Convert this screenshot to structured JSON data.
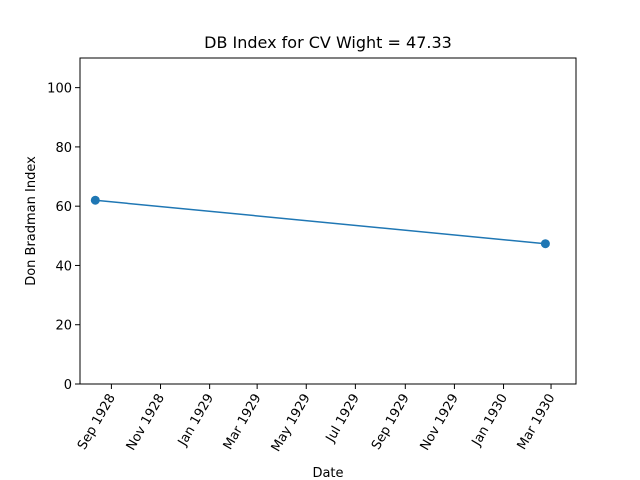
{
  "chart_data": {
    "type": "line",
    "title": "DB Index for CV Wight = 47.33",
    "xlabel": "Date",
    "ylabel": "Don Bradman Index",
    "x_type": "date",
    "xlim": [
      "1928-07-24",
      "1930-04-01"
    ],
    "ylim": [
      0,
      110
    ],
    "x_ticks": [
      {
        "date": "1928-09-01",
        "label": "Sep 1928"
      },
      {
        "date": "1928-11-01",
        "label": "Nov 1928"
      },
      {
        "date": "1929-01-01",
        "label": "Jan 1929"
      },
      {
        "date": "1929-03-01",
        "label": "Mar 1929"
      },
      {
        "date": "1929-05-01",
        "label": "May 1929"
      },
      {
        "date": "1929-07-01",
        "label": "Jul 1929"
      },
      {
        "date": "1929-09-01",
        "label": "Sep 1929"
      },
      {
        "date": "1929-11-01",
        "label": "Nov 1929"
      },
      {
        "date": "1930-01-01",
        "label": "Jan 1930"
      },
      {
        "date": "1930-03-01",
        "label": "Mar 1930"
      }
    ],
    "y_ticks": [
      {
        "value": 0,
        "label": "0"
      },
      {
        "value": 20,
        "label": "20"
      },
      {
        "value": 40,
        "label": "40"
      },
      {
        "value": 60,
        "label": "60"
      },
      {
        "value": 80,
        "label": "80"
      },
      {
        "value": 100,
        "label": "100"
      }
    ],
    "series": [
      {
        "color": "#1f77b4",
        "marker": "circle",
        "points": [
          {
            "x": "1928-08-12",
            "y": 62.0
          },
          {
            "x": "1930-02-22",
            "y": 47.33
          }
        ]
      }
    ],
    "grid": false,
    "legend": "none"
  }
}
